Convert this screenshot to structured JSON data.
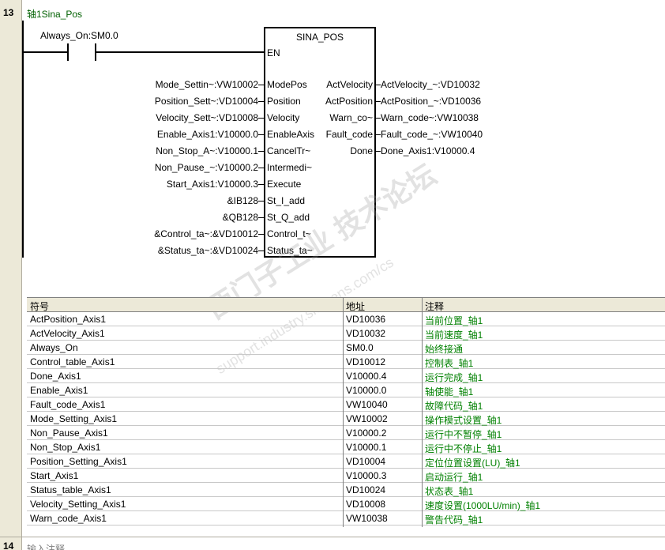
{
  "network": {
    "number": "13",
    "title": "轴1Sina_Pos",
    "next_number": "14",
    "next_comment": "输入注释"
  },
  "contact": {
    "label": "Always_On:SM0.0"
  },
  "block": {
    "name": "SINA_POS",
    "en": "EN",
    "inputs": [
      {
        "pin": "ModePos",
        "operand": "Mode_Settin~:VW10002"
      },
      {
        "pin": "Position",
        "operand": "Position_Sett~:VD10004"
      },
      {
        "pin": "Velocity",
        "operand": "Velocity_Sett~:VD10008"
      },
      {
        "pin": "EnableAxis",
        "operand": "Enable_Axis1:V10000.0"
      },
      {
        "pin": "CancelTr~",
        "operand": "Non_Stop_A~:V10000.1"
      },
      {
        "pin": "Intermedi~",
        "operand": "Non_Pause_~:V10000.2"
      },
      {
        "pin": "Execute",
        "operand": "Start_Axis1:V10000.3"
      },
      {
        "pin": "St_I_add",
        "operand": "&IB128"
      },
      {
        "pin": "St_Q_add",
        "operand": "&QB128"
      },
      {
        "pin": "Control_t~",
        "operand": "&Control_ta~:&VD10012"
      },
      {
        "pin": "Status_ta~",
        "operand": "&Status_ta~:&VD10024"
      }
    ],
    "outputs": [
      {
        "pin": "ActVelocity",
        "operand": "ActVelocity_~:VD10032"
      },
      {
        "pin": "ActPosition",
        "operand": "ActPosition_~:VD10036"
      },
      {
        "pin": "Warn_co~",
        "operand": "Warn_code~:VW10038"
      },
      {
        "pin": "Fault_code",
        "operand": "Fault_code_~:VW10040"
      },
      {
        "pin": "Done",
        "operand": "Done_Axis1:V10000.4"
      }
    ]
  },
  "symbol_table": {
    "headers": [
      "符号",
      "地址",
      "注释"
    ],
    "rows": [
      [
        "ActPosition_Axis1",
        "VD10036",
        "当前位置_轴1"
      ],
      [
        "ActVelocity_Axis1",
        "VD10032",
        "当前速度_轴1"
      ],
      [
        "Always_On",
        "SM0.0",
        "始终接通"
      ],
      [
        "Control_table_Axis1",
        "VD10012",
        "控制表_轴1"
      ],
      [
        "Done_Axis1",
        "V10000.4",
        "运行完成_轴1"
      ],
      [
        "Enable_Axis1",
        "V10000.0",
        "轴使能_轴1"
      ],
      [
        "Fault_code_Axis1",
        "VW10040",
        "故障代码_轴1"
      ],
      [
        "Mode_Setting_Axis1",
        "VW10002",
        "操作模式设置_轴1"
      ],
      [
        "Non_Pause_Axis1",
        "V10000.2",
        "运行中不暂停_轴1"
      ],
      [
        "Non_Stop_Axis1",
        "V10000.1",
        "运行中不停止_轴1"
      ],
      [
        "Position_Setting_Axis1",
        "VD10004",
        "定位位置设置(LU)_轴1"
      ],
      [
        "Start_Axis1",
        "V10000.3",
        "启动运行_轴1"
      ],
      [
        "Status_table_Axis1",
        "VD10024",
        "状态表_轴1"
      ],
      [
        "Velocity_Setting_Axis1",
        "VD10008",
        "速度设置(1000LU/min)_轴1"
      ],
      [
        "Warn_code_Axis1",
        "VW10038",
        "警告代码_轴1"
      ]
    ]
  },
  "watermark": {
    "line1": "西门子工业 技术论坛",
    "line2": "support.industry.siemens.com/cs"
  }
}
